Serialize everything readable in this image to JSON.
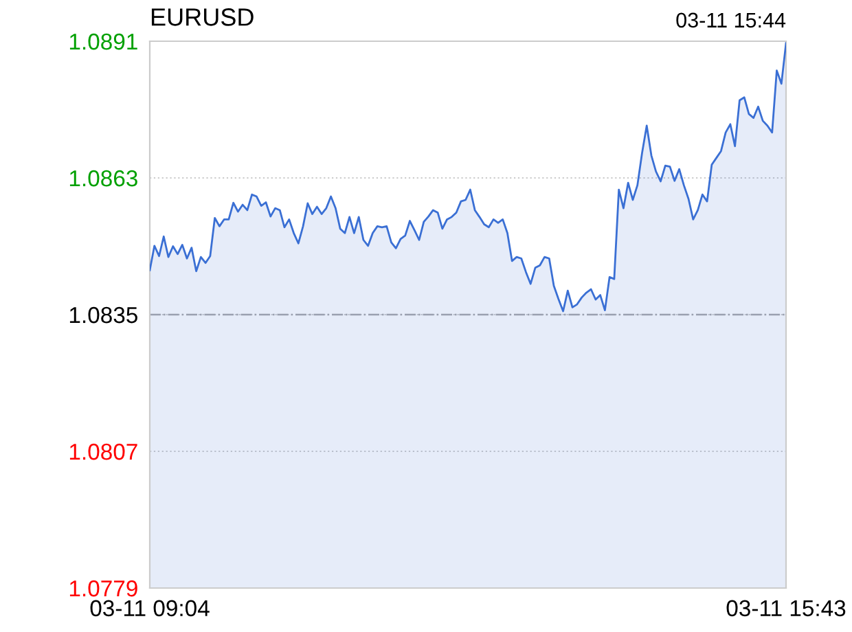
{
  "chart_data": {
    "type": "area",
    "title": "EURUSD",
    "annotations": [
      "03-11 15:44"
    ],
    "categories": [
      "03-11 09:04",
      null,
      null,
      null,
      null,
      null,
      null,
      null,
      null,
      null,
      null,
      null,
      null,
      null,
      null,
      null,
      null,
      null,
      null,
      null,
      null,
      null,
      null,
      null,
      null,
      null,
      null,
      null,
      null,
      null,
      null,
      null,
      null,
      null,
      null,
      null,
      null,
      null,
      null,
      null,
      null,
      null,
      null,
      null,
      null,
      null,
      null,
      null,
      null,
      null,
      null,
      null,
      null,
      null,
      null,
      null,
      null,
      null,
      null,
      null,
      null,
      null,
      null,
      null,
      null,
      null,
      null,
      null,
      null,
      null,
      null,
      null,
      null,
      null,
      null,
      null,
      null,
      null,
      null,
      null,
      null,
      null,
      null,
      null,
      null,
      null,
      null,
      null,
      null,
      null,
      null,
      null,
      null,
      null,
      null,
      null,
      null,
      null,
      null,
      null,
      null,
      null,
      null,
      null,
      null,
      null,
      null,
      null,
      null,
      null,
      null,
      null,
      null,
      null,
      null,
      null,
      null,
      null,
      null,
      null,
      null,
      null,
      null,
      null,
      null,
      null,
      null,
      null,
      null,
      null,
      null,
      null,
      null,
      null,
      null,
      null,
      null,
      "03-11 15:43"
    ],
    "series": [
      {
        "color": "#3a6fd4",
        "values": [
          1.08441,
          1.08491,
          1.0847,
          1.0851,
          1.08468,
          1.0849,
          1.08474,
          1.08493,
          1.08465,
          1.08487,
          1.08439,
          1.08468,
          1.08456,
          1.0847,
          1.08548,
          1.08531,
          1.08545,
          1.08545,
          1.08579,
          1.08561,
          1.08575,
          1.08564,
          1.08596,
          1.08592,
          1.08573,
          1.0858,
          1.08551,
          1.08568,
          1.08564,
          1.08529,
          1.08545,
          1.08517,
          1.08496,
          1.08531,
          1.08578,
          1.08556,
          1.08571,
          1.08556,
          1.08568,
          1.08592,
          1.08568,
          1.08526,
          1.08517,
          1.0855,
          1.08517,
          1.0855,
          1.08503,
          1.08491,
          1.08517,
          1.08531,
          1.08529,
          1.08531,
          1.08498,
          1.08486,
          1.08505,
          1.08512,
          1.08542,
          1.08523,
          1.08503,
          1.0854,
          1.08551,
          1.08564,
          1.08559,
          1.08526,
          1.08545,
          1.0855,
          1.08559,
          1.08582,
          1.08585,
          1.08606,
          1.08564,
          1.0855,
          1.08535,
          1.08529,
          1.08545,
          1.08538,
          1.08545,
          1.08517,
          1.0846,
          1.08468,
          1.08465,
          1.08437,
          1.08413,
          1.08446,
          1.08451,
          1.08468,
          1.08465,
          1.08409,
          1.08382,
          1.08357,
          1.08399,
          1.08365,
          1.08371,
          1.08385,
          1.08395,
          1.08402,
          1.08381,
          1.0839,
          1.08359,
          1.08427,
          1.08423,
          1.08606,
          1.08568,
          1.0862,
          1.08585,
          1.08615,
          1.08681,
          1.08737,
          1.08676,
          1.08643,
          1.08623,
          1.08655,
          1.08653,
          1.08624,
          1.08648,
          1.08615,
          1.08587,
          1.08545,
          1.08564,
          1.08596,
          1.08582,
          1.08657,
          1.08671,
          1.08685,
          1.08723,
          1.0874,
          1.08695,
          1.08789,
          1.08795,
          1.08761,
          1.08753,
          1.08776,
          1.08747,
          1.08737,
          1.08723,
          1.0885,
          1.08823,
          1.08906
        ]
      }
    ],
    "ylim": [
      1.0779,
      1.0891
    ],
    "yticks": [
      1.0779,
      1.0807,
      1.0835,
      1.0863,
      1.0891
    ],
    "ref_lines": [
      {
        "axis": "y",
        "value": 1.0835,
        "color": "#9aa0b0",
        "line_style": "dashdot"
      }
    ],
    "grid": "y",
    "marker": "none",
    "line_style": "solid"
  }
}
